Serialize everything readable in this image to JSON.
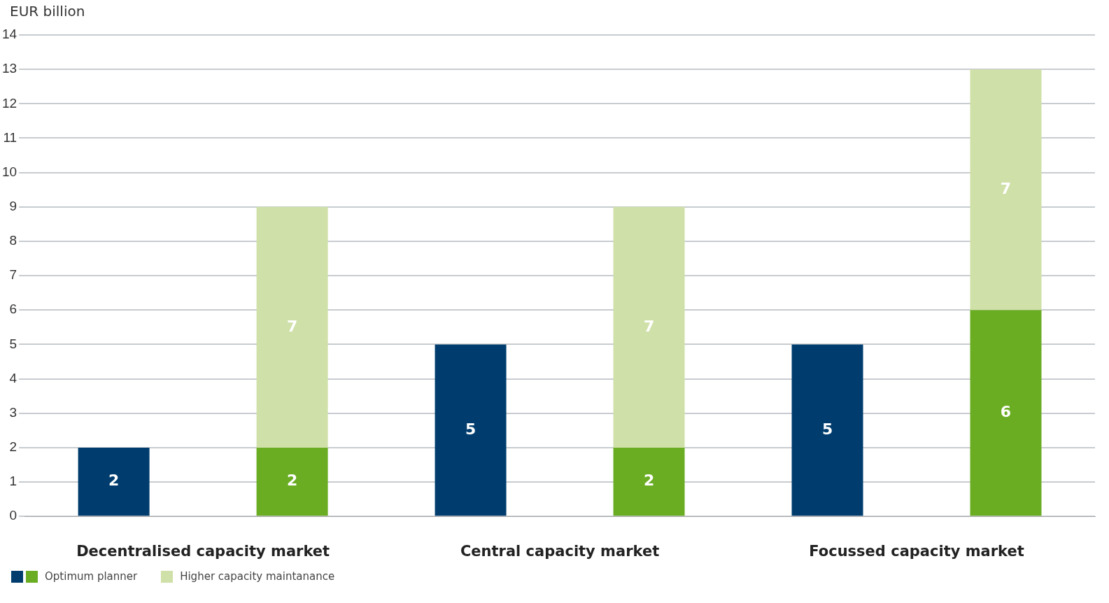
{
  "chart_data": {
    "type": "bar",
    "ylabel": "EUR billion",
    "categories": [
      null,
      null,
      null,
      null,
      null,
      null
    ],
    "series": [
      {
        "name": "Optimum planner",
        "colors": [
          "#003d6e",
          "#6aad23",
          "#003d6e",
          "#6aad23",
          "#003d6e",
          "#6aad23"
        ],
        "values": [
          2,
          2,
          5,
          2,
          5,
          6
        ]
      },
      {
        "name": "Higher capacity maintanance",
        "color": "#cfe0a8",
        "values": [
          null,
          7,
          null,
          7,
          null,
          7
        ]
      }
    ],
    "stacked": true,
    "data_labels": true,
    "ylim": [
      0,
      14
    ],
    "yticks": [
      0,
      1,
      2,
      3,
      4,
      5,
      6,
      7,
      8,
      9,
      10,
      11,
      12,
      13,
      14
    ],
    "grid": "y",
    "legend": "bottom left",
    "annotations": [
      "Decentralised capacity market",
      "Central capacity market",
      "Focussed capacity market"
    ]
  }
}
